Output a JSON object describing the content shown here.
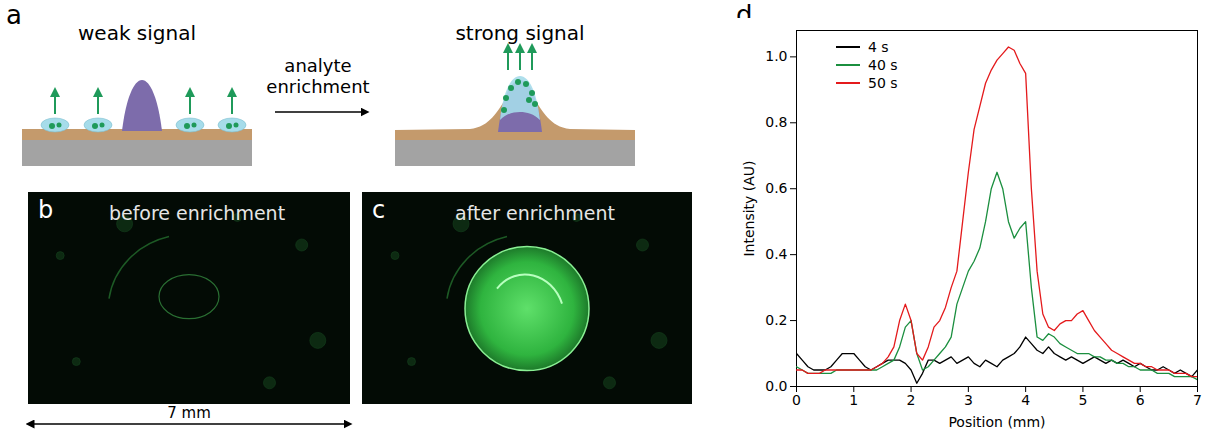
{
  "figure": {
    "a": {
      "label": "a",
      "left_title": "weak signal",
      "arrow_label": "analyte enrichment",
      "right_title": "strong signal"
    },
    "b": {
      "label": "b",
      "title": "before enrichment",
      "scale_bar": "7 mm"
    },
    "c": {
      "label": "c",
      "title": "after enrichment"
    }
  },
  "chart_data": {
    "type": "line",
    "panel": "d",
    "x_label": "Position (mm)",
    "y_label": "Intensity (AU)",
    "xlim": [
      0,
      7
    ],
    "xticks": [
      0,
      1,
      2,
      3,
      4,
      5,
      6,
      7
    ],
    "ylim": [
      0,
      1.08
    ],
    "yticks": [
      {
        "value": 0,
        "label": "0.0"
      },
      {
        "value": 0.2,
        "label": "0.2"
      },
      {
        "value": 0.4,
        "label": "0.4"
      },
      {
        "value": 0.6,
        "label": "0.6"
      },
      {
        "value": 0.8,
        "label": "0.8"
      },
      {
        "value": 1,
        "label": "1.0"
      }
    ],
    "legend": "top-left",
    "grid": false,
    "x": [
      0,
      0.1,
      0.2,
      0.3,
      0.4,
      0.5,
      0.6,
      0.7,
      0.8,
      0.9,
      1,
      1.1,
      1.2,
      1.3,
      1.4,
      1.5,
      1.6,
      1.7,
      1.8,
      1.9,
      2,
      2.1,
      2.2,
      2.3,
      2.4,
      2.5,
      2.6,
      2.7,
      2.8,
      2.9,
      3,
      3.1,
      3.2,
      3.3,
      3.4,
      3.5,
      3.6,
      3.7,
      3.8,
      3.9,
      4,
      4.1,
      4.2,
      4.3,
      4.4,
      4.5,
      4.6,
      4.7,
      4.8,
      4.9,
      5,
      5.1,
      5.2,
      5.3,
      5.4,
      5.5,
      5.6,
      5.7,
      5.8,
      5.9,
      6,
      6.1,
      6.2,
      6.3,
      6.4,
      6.5,
      6.6,
      6.7,
      6.8,
      6.9,
      7
    ],
    "series": [
      {
        "name": "4 s",
        "color": "#000000",
        "values": [
          0.1,
          0.08,
          0.06,
          0.05,
          0.05,
          0.05,
          0.06,
          0.08,
          0.1,
          0.1,
          0.1,
          0.08,
          0.06,
          0.05,
          0.06,
          0.07,
          0.08,
          0.08,
          0.08,
          0.07,
          0.05,
          0.01,
          0.04,
          0.08,
          0.08,
          0.07,
          0.08,
          0.09,
          0.07,
          0.08,
          0.09,
          0.07,
          0.06,
          0.08,
          0.07,
          0.06,
          0.08,
          0.09,
          0.1,
          0.12,
          0.15,
          0.13,
          0.11,
          0.1,
          0.12,
          0.1,
          0.09,
          0.08,
          0.09,
          0.08,
          0.07,
          0.08,
          0.09,
          0.08,
          0.07,
          0.08,
          0.07,
          0.08,
          0.07,
          0.06,
          0.07,
          0.06,
          0.05,
          0.05,
          0.06,
          0.05,
          0.04,
          0.05,
          0.04,
          0.03,
          0.05
        ]
      },
      {
        "name": "40 s",
        "color": "#1b8f3f",
        "values": [
          0.06,
          0.05,
          0.04,
          0.04,
          0.04,
          0.04,
          0.04,
          0.05,
          0.05,
          0.05,
          0.05,
          0.05,
          0.05,
          0.05,
          0.05,
          0.06,
          0.07,
          0.08,
          0.12,
          0.18,
          0.2,
          0.1,
          0.05,
          0.06,
          0.08,
          0.1,
          0.12,
          0.15,
          0.25,
          0.3,
          0.35,
          0.38,
          0.42,
          0.5,
          0.6,
          0.65,
          0.6,
          0.5,
          0.45,
          0.48,
          0.5,
          0.3,
          0.15,
          0.14,
          0.16,
          0.15,
          0.13,
          0.12,
          0.11,
          0.1,
          0.1,
          0.1,
          0.09,
          0.09,
          0.08,
          0.08,
          0.07,
          0.07,
          0.06,
          0.06,
          0.05,
          0.05,
          0.05,
          0.04,
          0.04,
          0.04,
          0.03,
          0.03,
          0.03,
          0.03,
          0.02
        ]
      },
      {
        "name": "50 s",
        "color": "#e41a1c",
        "values": [
          0.05,
          0.05,
          0.04,
          0.04,
          0.04,
          0.05,
          0.05,
          0.05,
          0.05,
          0.05,
          0.05,
          0.05,
          0.05,
          0.05,
          0.06,
          0.07,
          0.09,
          0.12,
          0.2,
          0.25,
          0.2,
          0.1,
          0.08,
          0.12,
          0.18,
          0.2,
          0.24,
          0.3,
          0.35,
          0.5,
          0.65,
          0.78,
          0.85,
          0.92,
          0.96,
          0.99,
          1.01,
          1.03,
          1.02,
          0.98,
          0.95,
          0.6,
          0.35,
          0.22,
          0.18,
          0.17,
          0.19,
          0.2,
          0.2,
          0.22,
          0.23,
          0.2,
          0.17,
          0.15,
          0.13,
          0.11,
          0.1,
          0.09,
          0.08,
          0.07,
          0.07,
          0.06,
          0.06,
          0.05,
          0.05,
          0.05,
          0.04,
          0.04,
          0.04,
          0.03,
          0.03
        ]
      }
    ]
  }
}
